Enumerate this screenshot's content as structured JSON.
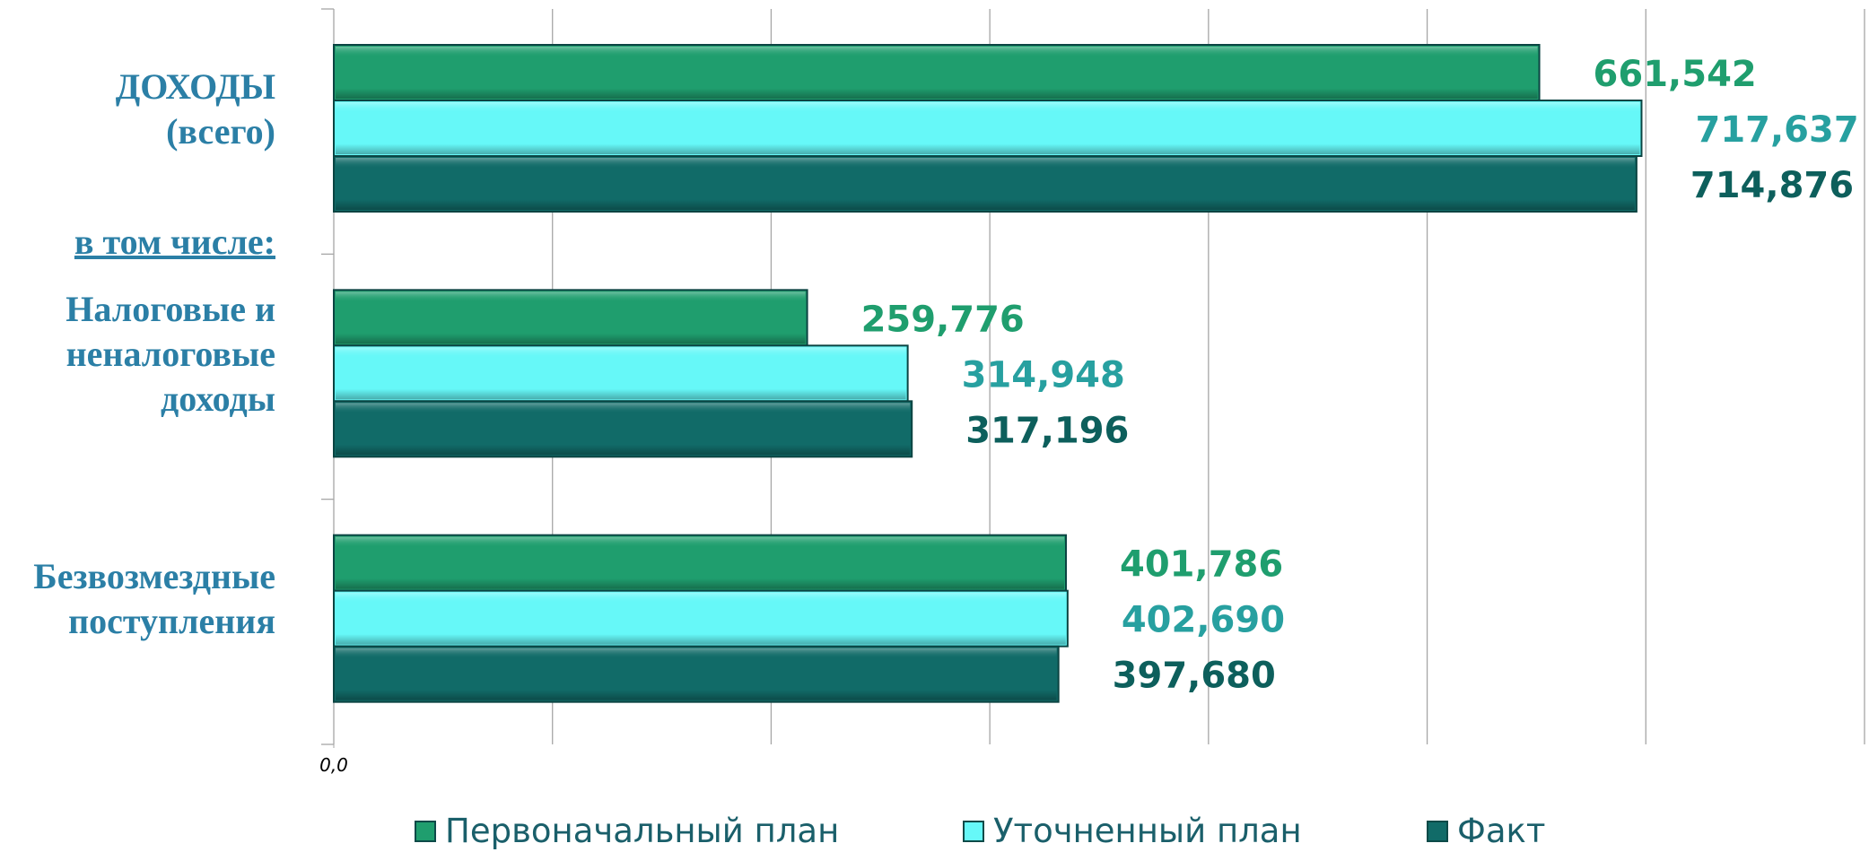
{
  "chart_data": {
    "type": "barh",
    "categories": [
      "ДОХОДЫ\n(всего)",
      "Налоговые и\nненалоговые\nдоходы",
      "Безвозмездные\nпоступления"
    ],
    "annotation": "в том числе:",
    "series": [
      {
        "name": "Первоначальный план",
        "color": "#1f9e6e",
        "label_color": "#1f9e6e",
        "values": [
          661.542,
          259.776,
          401.786
        ],
        "value_labels": [
          "661,542",
          "259,776",
          "401,786"
        ]
      },
      {
        "name": "Уточненный план",
        "color": "#66f8f8",
        "label_color": "#27a0a0",
        "values": [
          717.637,
          314.948,
          402.69
        ],
        "value_labels": [
          "717,637",
          "314,948",
          "402,690"
        ]
      },
      {
        "name": "Факт",
        "color": "#116b68",
        "label_color": "#0d5f5c",
        "values": [
          714.876,
          317.196,
          397.68
        ],
        "value_labels": [
          "714,876",
          "317,196",
          "397,680"
        ]
      }
    ],
    "xlim": [
      0,
      840
    ],
    "xticks": [
      {
        "value": 0,
        "label": "0,0"
      }
    ],
    "grid_x": [
      120,
      240,
      360,
      480,
      600,
      720,
      840
    ],
    "grid": true
  }
}
